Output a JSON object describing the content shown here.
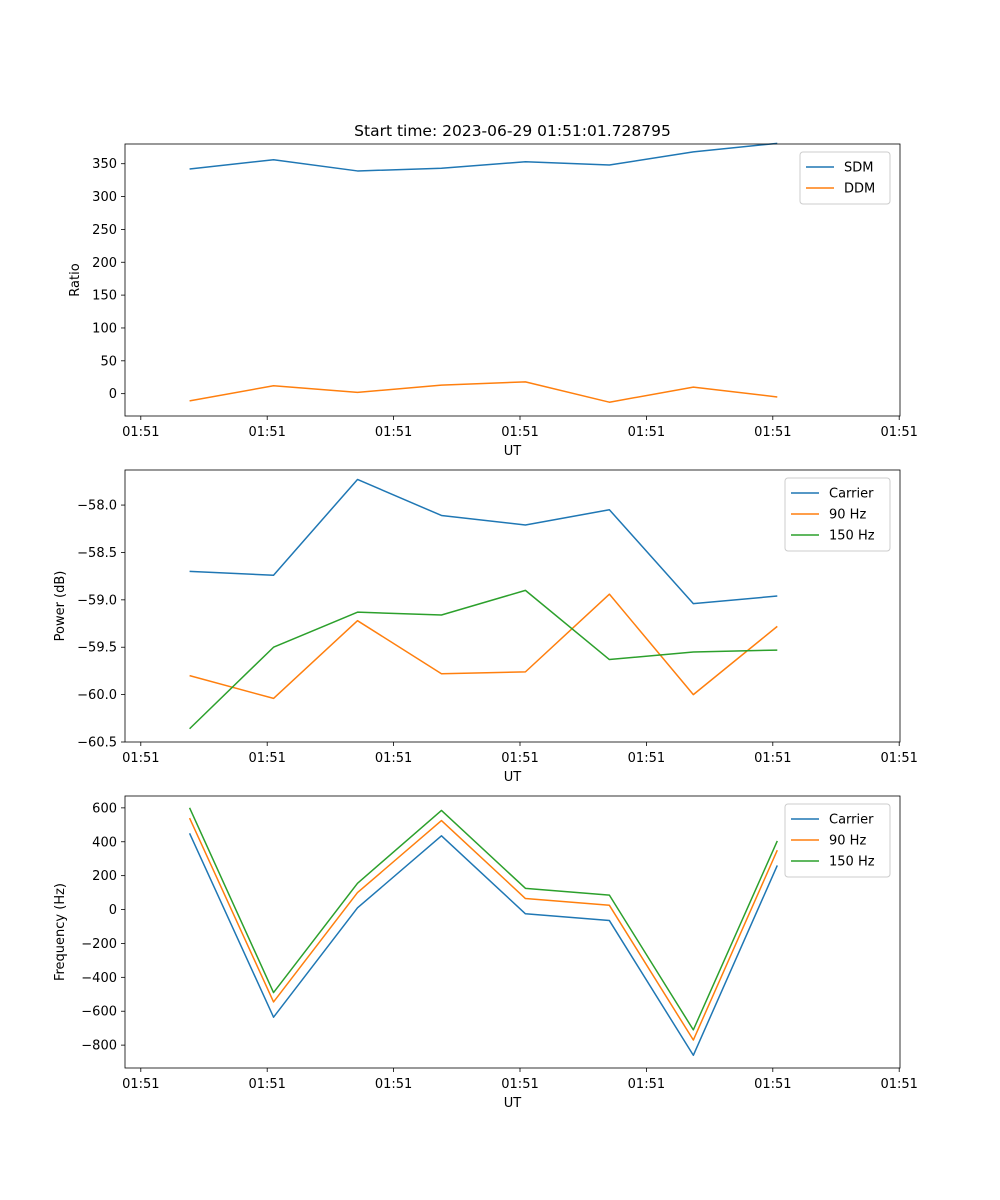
{
  "figure": {
    "title": "Start time: 2023-06-29 01:51:01.728795"
  },
  "chart_data": [
    {
      "type": "line",
      "title": "Start time: 2023-06-29 01:51:01.728795",
      "xlabel": "UT",
      "ylabel": "Ratio",
      "x_tick_labels": [
        "01:51",
        "01:51",
        "01:51",
        "01:51",
        "01:51",
        "01:51",
        "01:51"
      ],
      "y_ticks": [
        0,
        50,
        100,
        150,
        200,
        250,
        300,
        350
      ],
      "ylim": [
        -34,
        380
      ],
      "legend": "top-right",
      "grid": false,
      "x": [
        0.5,
        1.15,
        1.8,
        2.45,
        3.1,
        3.75,
        4.4,
        5.05
      ],
      "xlim": [
        0,
        6
      ],
      "series": [
        {
          "name": "SDM",
          "color": "#1f77b4",
          "values": [
            342,
            356,
            339,
            343,
            353,
            348,
            368,
            381
          ]
        },
        {
          "name": "DDM",
          "color": "#ff7f0e",
          "values": [
            -11,
            12,
            2,
            13,
            18,
            -13,
            10,
            -5
          ]
        }
      ]
    },
    {
      "type": "line",
      "xlabel": "UT",
      "ylabel": "Power (dB)",
      "x_tick_labels": [
        "01:51",
        "01:51",
        "01:51",
        "01:51",
        "01:51",
        "01:51",
        "01:51"
      ],
      "y_ticks": [
        -60.5,
        -60.0,
        -59.5,
        -59.0,
        -58.5,
        -58.0
      ],
      "y_tick_labels": [
        "−60.5",
        "−60.0",
        "−59.5",
        "−59.0",
        "−58.5",
        "−58.0"
      ],
      "ylim": [
        -60.5,
        -57.63
      ],
      "legend": "top-right",
      "grid": false,
      "x": [
        0.5,
        1.15,
        1.8,
        2.45,
        3.1,
        3.75,
        4.4,
        5.05
      ],
      "xlim": [
        0,
        6
      ],
      "series": [
        {
          "name": "Carrier",
          "color": "#1f77b4",
          "values": [
            -58.7,
            -58.74,
            -57.73,
            -58.11,
            -58.21,
            -58.05,
            -59.04,
            -58.96
          ]
        },
        {
          "name": "90 Hz",
          "color": "#ff7f0e",
          "values": [
            -59.8,
            -60.04,
            -59.22,
            -59.78,
            -59.76,
            -58.94,
            -60.0,
            -59.28
          ]
        },
        {
          "name": "150 Hz",
          "color": "#2ca02c",
          "values": [
            -60.36,
            -59.5,
            -59.13,
            -59.16,
            -58.9,
            -59.63,
            -59.55,
            -59.53
          ]
        }
      ]
    },
    {
      "type": "line",
      "xlabel": "UT",
      "ylabel": "Frequency (Hz)",
      "x_tick_labels": [
        "01:51",
        "01:51",
        "01:51",
        "01:51",
        "01:51",
        "01:51",
        "01:51"
      ],
      "y_ticks": [
        -800,
        -600,
        -400,
        -200,
        0,
        200,
        400,
        600
      ],
      "y_tick_labels": [
        "−800",
        "−600",
        "−400",
        "−200",
        "0",
        "200",
        "400",
        "600"
      ],
      "ylim": [
        -935,
        670
      ],
      "legend": "top-right",
      "grid": false,
      "x": [
        0.5,
        1.15,
        1.8,
        2.45,
        3.1,
        3.75,
        4.4,
        5.05
      ],
      "xlim": [
        0,
        6
      ],
      "series": [
        {
          "name": "Carrier",
          "color": "#1f77b4",
          "values": [
            450,
            -635,
            10,
            435,
            -25,
            -65,
            -860,
            260
          ]
        },
        {
          "name": "90 Hz",
          "color": "#ff7f0e",
          "values": [
            540,
            -545,
            100,
            525,
            65,
            25,
            -770,
            350
          ]
        },
        {
          "name": "150 Hz",
          "color": "#2ca02c",
          "values": [
            600,
            -490,
            155,
            585,
            125,
            85,
            -710,
            405
          ]
        }
      ]
    }
  ]
}
